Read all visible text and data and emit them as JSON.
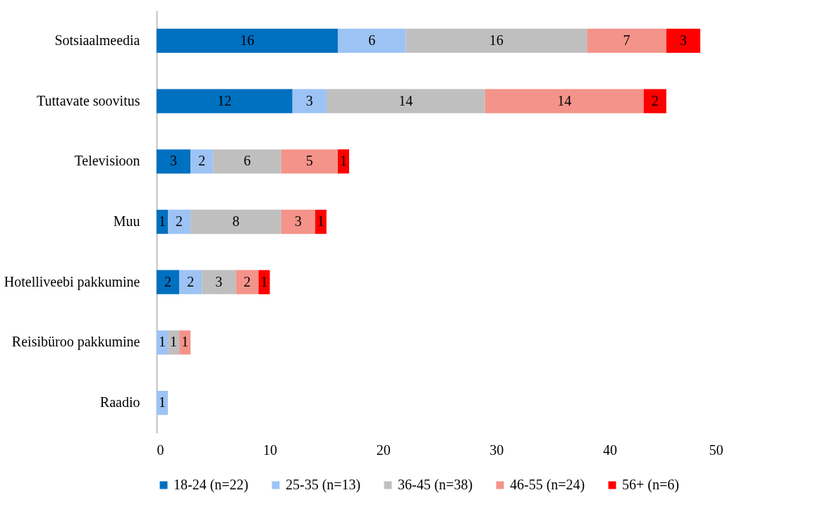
{
  "chart_data": {
    "type": "bar",
    "orientation": "horizontal",
    "stacked": true,
    "categories": [
      "Sotsiaalmeedia",
      "Tuttavate soovitus",
      "Televisioon",
      "Muu",
      "Hotelliveebi pakkumine",
      "Reisibüroo pakkumine",
      "Raadio"
    ],
    "series": [
      {
        "name": "18-24 (n=22)",
        "color": "#0070c0",
        "values": [
          16,
          12,
          3,
          1,
          2,
          null,
          null
        ]
      },
      {
        "name": "25-35 (n=13)",
        "color": "#9dc3f5",
        "values": [
          6,
          3,
          2,
          2,
          2,
          1,
          1
        ]
      },
      {
        "name": "36-45 (n=38)",
        "color": "#bfbfbf",
        "values": [
          16,
          14,
          6,
          8,
          3,
          1,
          null
        ]
      },
      {
        "name": "46-55 (n=24)",
        "color": "#f4938a",
        "values": [
          7,
          14,
          5,
          3,
          2,
          1,
          null
        ]
      },
      {
        "name": "56+ (n=6)",
        "color": "#ff0000",
        "values": [
          3,
          2,
          1,
          1,
          1,
          null,
          null
        ]
      }
    ],
    "xlim": [
      0,
      50
    ],
    "xticks": [
      0,
      10,
      20,
      30,
      40,
      50
    ],
    "grid": false,
    "legend": "bottom",
    "data_labels": true
  }
}
